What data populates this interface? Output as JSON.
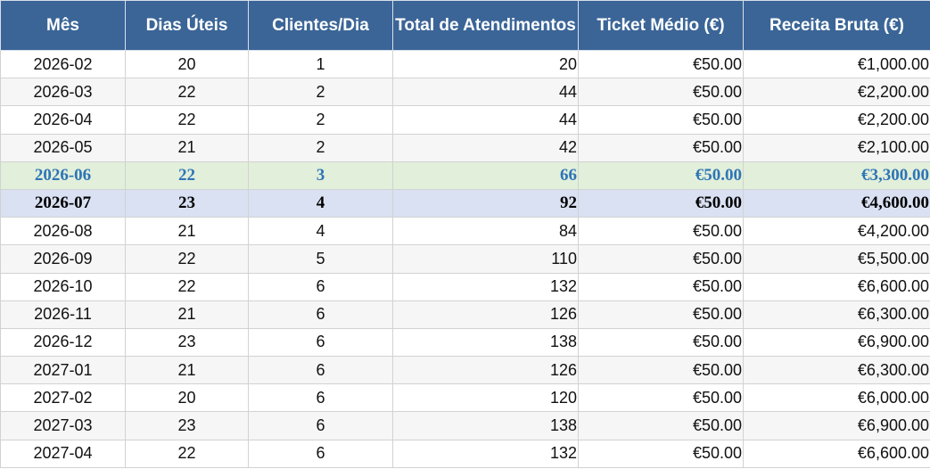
{
  "table": {
    "header": [
      "Mês",
      "Dias Úteis",
      "Clientes/Dia",
      "Total de Atendimentos",
      "Ticket Médio (€)",
      "Receita Bruta (€)"
    ],
    "rows": [
      [
        "2026-02",
        "20",
        "1",
        "20",
        "€50.00",
        "€1,000.00"
      ],
      [
        "2026-03",
        "22",
        "2",
        "44",
        "€50.00",
        "€2,200.00"
      ],
      [
        "2026-04",
        "22",
        "2",
        "44",
        "€50.00",
        "€2,200.00"
      ],
      [
        "2026-05",
        "21",
        "2",
        "42",
        "€50.00",
        "€2,100.00"
      ],
      [
        "2026-06",
        "22",
        "3",
        "66",
        "€50.00",
        "€3,300.00"
      ],
      [
        "2026-07",
        "23",
        "4",
        "92",
        "€50.00",
        "€4,600.00"
      ],
      [
        "2026-08",
        "21",
        "4",
        "84",
        "€50.00",
        "€4,200.00"
      ],
      [
        "2026-09",
        "22",
        "5",
        "110",
        "€50.00",
        "€5,500.00"
      ],
      [
        "2026-10",
        "22",
        "6",
        "132",
        "€50.00",
        "€6,600.00"
      ],
      [
        "2026-11",
        "21",
        "6",
        "126",
        "€50.00",
        "€6,300.00"
      ],
      [
        "2026-12",
        "23",
        "6",
        "138",
        "€50.00",
        "€6,900.00"
      ],
      [
        "2027-01",
        "21",
        "6",
        "126",
        "€50.00",
        "€6,300.00"
      ],
      [
        "2027-02",
        "20",
        "6",
        "120",
        "€50.00",
        "€6,000.00"
      ],
      [
        "2027-03",
        "23",
        "6",
        "138",
        "€50.00",
        "€6,900.00"
      ],
      [
        "2027-04",
        "22",
        "6",
        "132",
        "€50.00",
        "€6,600.00"
      ]
    ]
  }
}
